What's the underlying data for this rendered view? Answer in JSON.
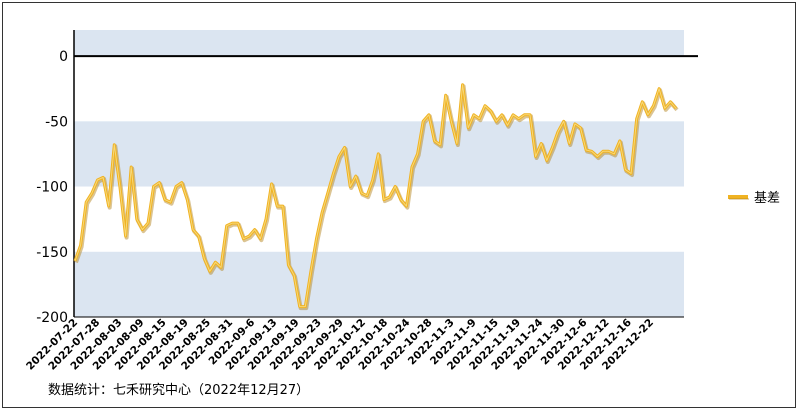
{
  "chart_data": {
    "type": "line",
    "title": "",
    "xlabel": "",
    "ylabel": "",
    "ylim": [
      -200,
      20
    ],
    "yticks": [
      0,
      -50,
      -100,
      -150,
      -200
    ],
    "grid": "alternating horizontal bands",
    "legend_position": "right",
    "band_color": "#dbe5f1",
    "line_color": "#f0b323",
    "line_highlight": "#f7d87a",
    "xtick_labels": [
      "2022-07-22",
      "2022-07-28",
      "2022-08-03",
      "2022-08-09",
      "2022-08-15",
      "2022-08-19",
      "2022-08-25",
      "2022-08-31",
      "2022-09-6",
      "2022-09-13",
      "2022-09-19",
      "2022-09-23",
      "2022-09-29",
      "2022-10-12",
      "2022-10-18",
      "2022-10-24",
      "2022-10-28",
      "2022-11-3",
      "2022-11-9",
      "2022-11-15",
      "2022-11-19",
      "2022-11-24",
      "2022-11-30",
      "2022-12-6",
      "2022-12-12",
      "2022-12-16",
      "2022-12-22"
    ],
    "series": [
      {
        "name": "基差",
        "values": [
          -157,
          -145,
          -112,
          -105,
          -95,
          -93,
          -115,
          -68,
          -100,
          -138,
          -85,
          -125,
          -133,
          -128,
          -100,
          -97,
          -110,
          -112,
          -100,
          -97,
          -110,
          -133,
          -138,
          -155,
          -165,
          -158,
          -162,
          -130,
          -128,
          -128,
          -140,
          -138,
          -133,
          -140,
          -125,
          -98,
          -115,
          -115,
          -160,
          -168,
          -192,
          -192,
          -165,
          -140,
          -120,
          -105,
          -90,
          -77,
          -70,
          -100,
          -92,
          -105,
          -107,
          -95,
          -75,
          -110,
          -108,
          -100,
          -110,
          -115,
          -85,
          -75,
          -50,
          -45,
          -65,
          -68,
          -30,
          -50,
          -67,
          -22,
          -55,
          -45,
          -48,
          -38,
          -42,
          -50,
          -45,
          -53,
          -45,
          -48,
          -45,
          -45,
          -77,
          -67,
          -80,
          -70,
          -58,
          -50,
          -67,
          -52,
          -55,
          -72,
          -73,
          -77,
          -73,
          -73,
          -75,
          -65,
          -87,
          -90,
          -48,
          -35,
          -45,
          -38,
          -25,
          -40,
          -35,
          -40
        ]
      }
    ]
  },
  "legend": {
    "label": "基差"
  },
  "footnote": "数据统计：七禾研究中心（2022年12月27）"
}
